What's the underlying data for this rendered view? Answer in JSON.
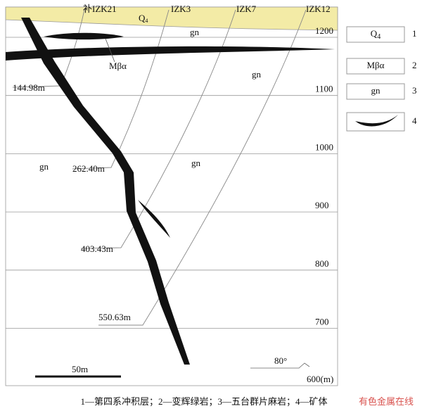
{
  "drill_holes": [
    "补IZK21",
    "IZK3",
    "IZK7",
    "IZK12"
  ],
  "depth_labels": [
    "144.98m",
    "262.40m",
    "403.43m",
    "550.63m"
  ],
  "elevations": [
    "1200",
    "1100",
    "1000",
    "900",
    "800",
    "700",
    "600(m)"
  ],
  "rock_labels": {
    "q4": {
      "symbol": "Q",
      "subscript": "4"
    },
    "mba": "Mβα",
    "gn": [
      "gn",
      "gn",
      "gn",
      "gn"
    ]
  },
  "scale_bar": "50m",
  "dip_angle": "80°",
  "legend": [
    {
      "symbol": "Q",
      "subscript": "4",
      "number": "1"
    },
    {
      "symbol": "Mβα",
      "number": "2"
    },
    {
      "symbol": "gn",
      "number": "3"
    },
    {
      "number": "4"
    }
  ],
  "caption": "1—第四系冲积层；2—变辉绿岩；3—五台群片麻岩；4—矿体",
  "watermark": "有色金属在线"
}
